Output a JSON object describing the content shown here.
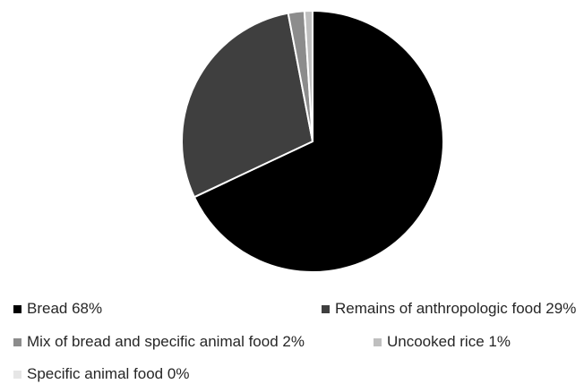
{
  "chart_data": {
    "type": "pie",
    "title": "",
    "legend_position": "bottom",
    "slices": [
      {
        "label": "Bread",
        "value": 68,
        "display": "Bread 68%",
        "color": "#000000"
      },
      {
        "label": "Remains of anthropologic food",
        "value": 29,
        "display": "Remains of anthropologic food 29%",
        "color": "#3f3f3f"
      },
      {
        "label": "Mix of bread and specific animal food",
        "value": 2,
        "display": "Mix of bread and specific animal food 2%",
        "color": "#8c8c8c"
      },
      {
        "label": "Uncooked rice",
        "value": 1,
        "display": "Uncooked rice 1%",
        "color": "#bfbfbf"
      },
      {
        "label": "Specific animal food",
        "value": 0,
        "display": "Specific animal food 0%",
        "color": "#e6e6e6"
      }
    ]
  }
}
